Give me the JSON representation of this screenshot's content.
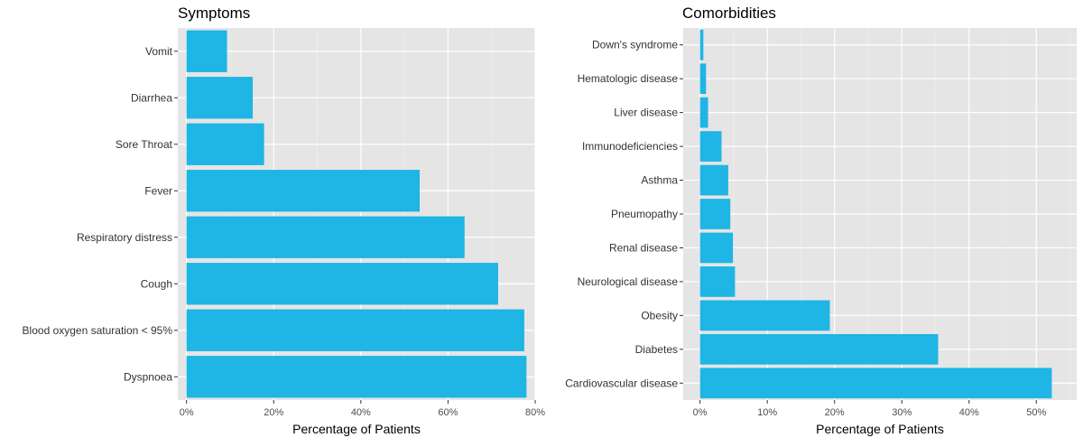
{
  "colors": {
    "bar": "#1fb5e5",
    "panel_bg": "#e5e5e5",
    "grid_major": "#ffffff",
    "grid_minor": "#f0f0f0",
    "tick": "#333333"
  },
  "chart_data": [
    {
      "type": "bar",
      "orientation": "horizontal",
      "title": "Symptoms",
      "xlabel": "Percentage of Patients",
      "ylabel": "",
      "xlim": [
        -0.02,
        0.8
      ],
      "x_ticks": [
        0,
        0.2,
        0.4,
        0.6,
        0.8
      ],
      "x_tick_labels": [
        "0%",
        "20%",
        "40%",
        "60%",
        "80%"
      ],
      "grid": true,
      "categories": [
        "Dyspnoea",
        "Blood oxygen saturation < 95%",
        "Cough",
        "Respiratory distress",
        "Fever",
        "Sore Throat",
        "Diarrhea",
        "Vomit"
      ],
      "values": [
        0.78,
        0.775,
        0.715,
        0.638,
        0.535,
        0.178,
        0.152,
        0.093
      ]
    },
    {
      "type": "bar",
      "orientation": "horizontal",
      "title": "Comorbidities",
      "xlabel": "Percentage of Patients",
      "ylabel": "",
      "xlim": [
        -0.025,
        0.56
      ],
      "x_ticks": [
        0,
        0.1,
        0.2,
        0.3,
        0.4,
        0.5
      ],
      "x_tick_labels": [
        "0%",
        "10%",
        "20%",
        "30%",
        "40%",
        "50%"
      ],
      "grid": true,
      "categories": [
        "Cardiovascular disease",
        "Diabetes",
        "Obesity",
        "Neurological disease",
        "Renal disease",
        "Pneumopathy",
        "Asthma",
        "Immunodeficiencies",
        "Liver disease",
        "Hematologic disease",
        "Down's syndrome"
      ],
      "values": [
        0.523,
        0.354,
        0.193,
        0.052,
        0.049,
        0.045,
        0.042,
        0.032,
        0.012,
        0.009,
        0.005
      ]
    }
  ]
}
